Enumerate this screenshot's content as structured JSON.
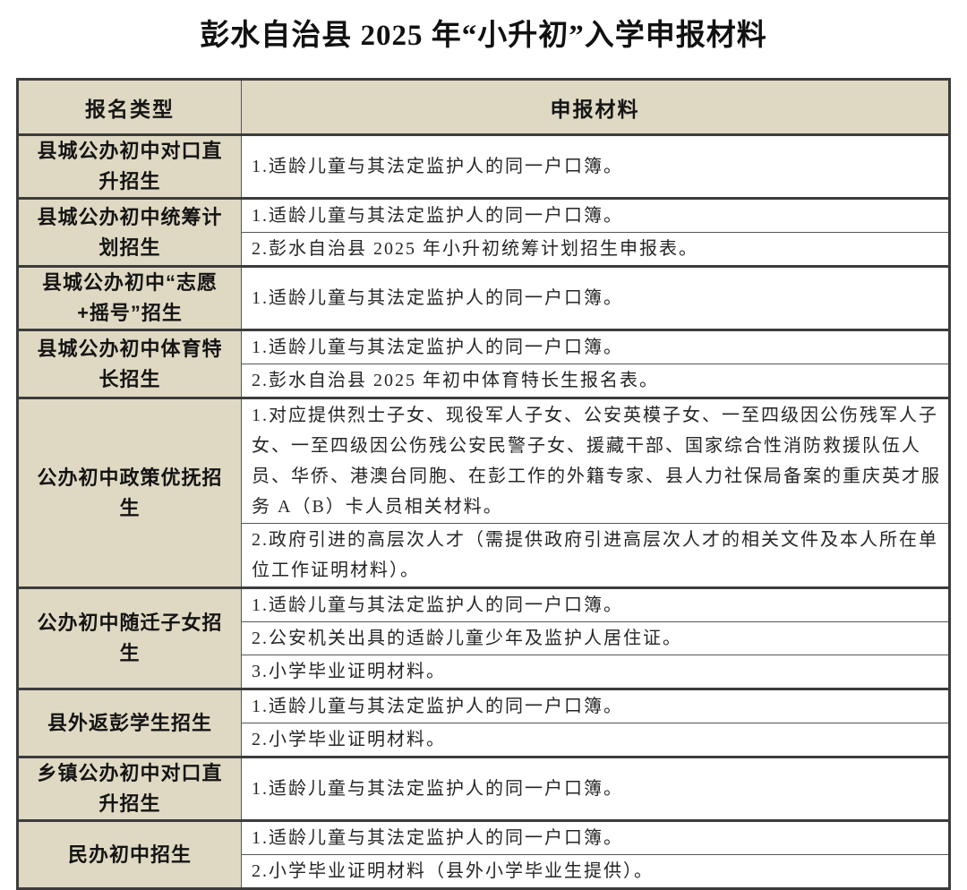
{
  "title": "彭水自治县 2025 年“小升初”入学申报材料",
  "colors": {
    "header_bg": "#dfd9c3",
    "border": "#3c3c3c",
    "body_bg": "#ffffff",
    "text": "#1b1b1b"
  },
  "table": {
    "headers": [
      "报名类型",
      "申报材料"
    ],
    "groups": [
      {
        "type": "县城公办初中对口直升招生",
        "materials": [
          "1.适龄儿童与其法定监护人的同一户口簿。"
        ]
      },
      {
        "type": "县城公办初中统筹计划招生",
        "materials": [
          "1.适龄儿童与其法定监护人的同一户口簿。",
          "2.彭水自治县 2025 年小升初统筹计划招生申报表。"
        ]
      },
      {
        "type": "县城公办初中“志愿+摇号”招生",
        "materials": [
          "1.适龄儿童与其法定监护人的同一户口簿。"
        ]
      },
      {
        "type": "县城公办初中体育特长招生",
        "materials": [
          "1.适龄儿童与其法定监护人的同一户口簿。",
          "2.彭水自治县 2025 年初中体育特长生报名表。"
        ]
      },
      {
        "type": "公办初中政策优抚招生",
        "materials": [
          "1.对应提供烈士子女、现役军人子女、公安英模子女、一至四级因公伤残军人子女、一至四级因公伤残公安民警子女、援藏干部、国家综合性消防救援队伍人员、华侨、港澳台同胞、在彭工作的外籍专家、县人力社保局备案的重庆英才服务 A（B）卡人员相关材料。",
          "2.政府引进的高层次人才（需提供政府引进高层次人才的相关文件及本人所在单位工作证明材料）。"
        ]
      },
      {
        "type": "公办初中随迁子女招生",
        "materials": [
          "1.适龄儿童与其法定监护人的同一户口簿。",
          "2.公安机关出具的适龄儿童少年及监护人居住证。",
          "3.小学毕业证明材料。"
        ]
      },
      {
        "type": "县外返彭学生招生",
        "materials": [
          "1.适龄儿童与其法定监护人的同一户口簿。",
          "2.小学毕业证明材料。"
        ]
      },
      {
        "type": "乡镇公办初中对口直升招生",
        "materials": [
          "1.适龄儿童与其法定监护人的同一户口簿。"
        ]
      },
      {
        "type": "民办初中招生",
        "materials": [
          "1.适龄儿童与其法定监护人的同一户口簿。",
          "2.小学毕业证明材料（县外小学毕业生提供）。"
        ]
      }
    ]
  }
}
